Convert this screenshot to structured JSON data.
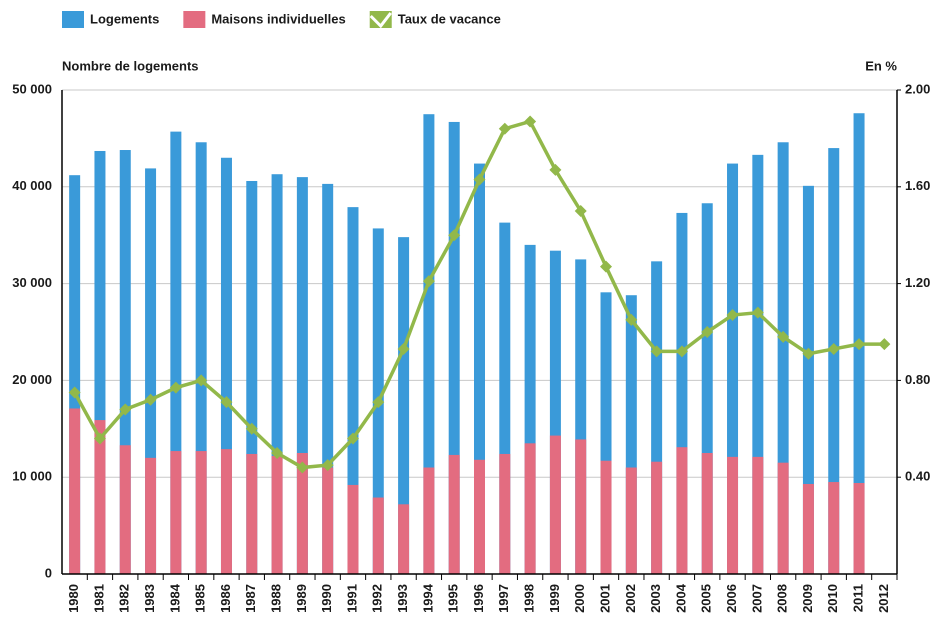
{
  "chart_data": {
    "type": "bar",
    "y_label": "Nombre de logements",
    "y2_label": "En %",
    "categories": [
      "1980",
      "1981",
      "1982",
      "1983",
      "1984",
      "1985",
      "1986",
      "1987",
      "1988",
      "1989",
      "1990",
      "1991",
      "1992",
      "1993",
      "1994",
      "1995",
      "1996",
      "1997",
      "1998",
      "1999",
      "2000",
      "2001",
      "2002",
      "2003",
      "2004",
      "2005",
      "2006",
      "2007",
      "2008",
      "2009",
      "2010",
      "2011",
      "2012"
    ],
    "series": [
      {
        "name": "Logements",
        "type": "bar",
        "color": "#3a9ad9",
        "values": [
          41200,
          43700,
          43800,
          41900,
          45700,
          44600,
          43000,
          40600,
          41300,
          41000,
          40300,
          37900,
          35700,
          34800,
          47500,
          46700,
          42400,
          36300,
          34000,
          33400,
          32500,
          29100,
          28800,
          32300,
          37300,
          38300,
          42400,
          43300,
          44600,
          40100,
          44000,
          47600,
          null
        ]
      },
      {
        "name": "Maisons individuelles",
        "type": "bar",
        "color": "#e36c80",
        "values": [
          17100,
          15900,
          13300,
          12000,
          12700,
          12700,
          12900,
          12400,
          12200,
          12500,
          11000,
          9200,
          7900,
          7200,
          11000,
          12300,
          11800,
          12400,
          13500,
          14300,
          13900,
          11700,
          11000,
          11600,
          13100,
          12500,
          12100,
          12100,
          11500,
          9300,
          9500,
          9400,
          null
        ]
      },
      {
        "name": "Taux de vacance",
        "type": "line",
        "axis": "y2",
        "color": "#92b84a",
        "values": [
          0.75,
          0.56,
          0.68,
          0.72,
          0.77,
          0.8,
          0.71,
          0.6,
          0.5,
          0.44,
          0.45,
          0.56,
          0.71,
          0.93,
          1.21,
          1.4,
          1.63,
          1.84,
          1.87,
          1.67,
          1.5,
          1.27,
          1.05,
          0.92,
          0.92,
          1.0,
          1.07,
          1.08,
          0.98,
          0.91,
          0.93,
          0.95,
          0.95
        ]
      }
    ],
    "ylim": [
      0,
      50000
    ],
    "yticks": [
      0,
      {
        "value": 10000,
        "label": "10 000"
      },
      {
        "value": 20000,
        "label": "20 000"
      },
      {
        "value": 30000,
        "label": "30 000"
      },
      {
        "value": 40000,
        "label": "40 000"
      },
      {
        "value": 50000,
        "label": "50 000"
      }
    ],
    "y2lim": [
      0,
      2
    ],
    "y2ticks": [
      {
        "value": 0.4,
        "label": "0.40"
      },
      {
        "value": 0.8,
        "label": "0.80"
      },
      {
        "value": 1.2,
        "label": "1.20"
      },
      {
        "value": 1.6,
        "label": "1.60"
      },
      {
        "value": 2,
        "label": "2.00"
      }
    ],
    "grid": true,
    "legend": "top-left"
  }
}
